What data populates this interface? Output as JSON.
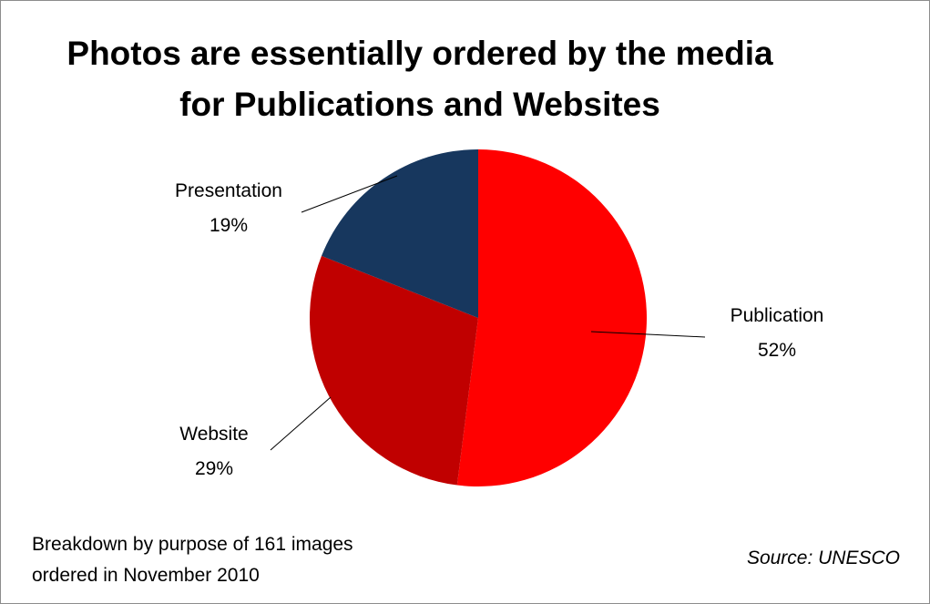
{
  "chart_data": {
    "type": "pie",
    "title_lines": [
      "Photos are essentially ordered by the media",
      "for Publications and Websites"
    ],
    "slices": [
      {
        "label": "Publication",
        "value": 52,
        "pct_text": "52%",
        "color": "#ff0000"
      },
      {
        "label": "Website",
        "value": 29,
        "pct_text": "29%",
        "color": "#c00000"
      },
      {
        "label": "Presentation",
        "value": 19,
        "pct_text": "19%",
        "color": "#17375e"
      }
    ],
    "start_angle_deg": 0,
    "direction": "clockwise",
    "legend": "none"
  },
  "note_lines": [
    "Breakdown by purpose of 161 images",
    "ordered in November 2010"
  ],
  "source": "Source: UNESCO"
}
